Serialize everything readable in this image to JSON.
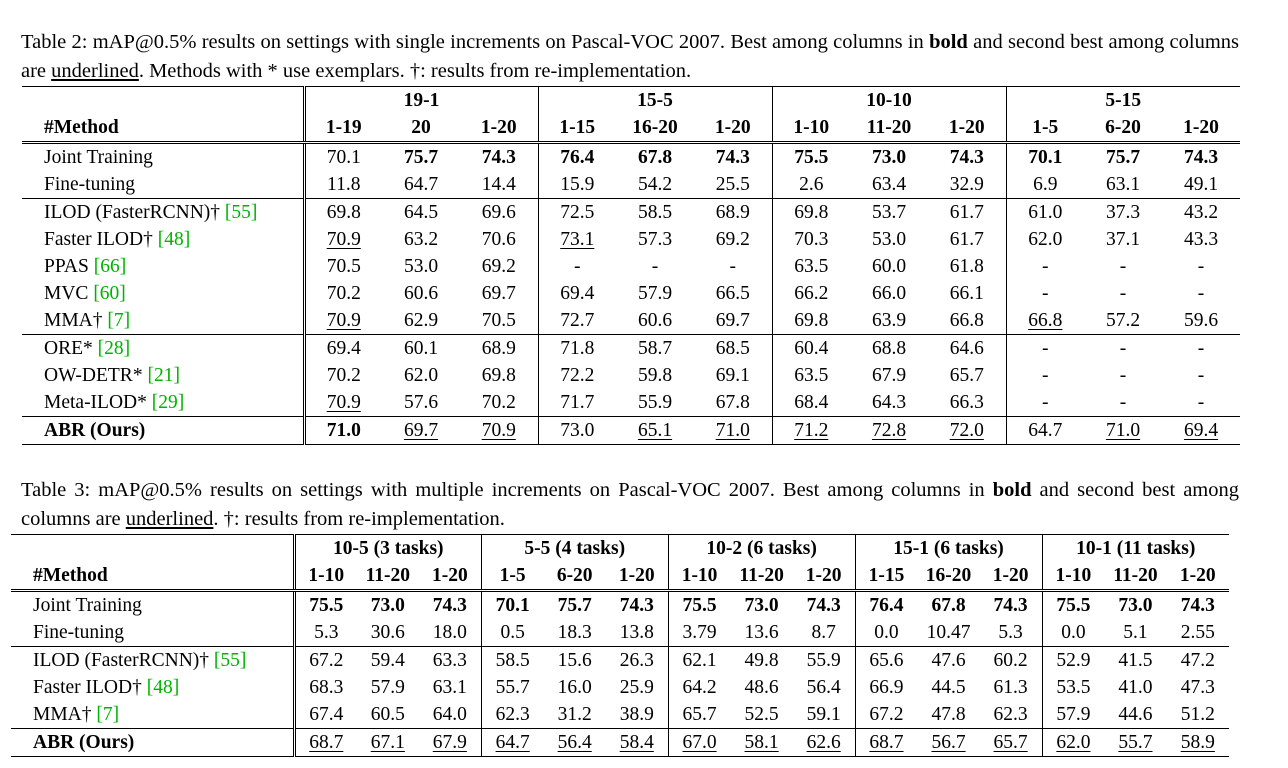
{
  "table2": {
    "caption": {
      "part1": "Table 2: mAP@0.5% results on settings with single increments on Pascal-VOC 2007. Best among columns in ",
      "bold": "bold",
      "part2": " and second best among columns are ",
      "underlined": "underlined",
      "part3": ". Methods with * use exemplars. †: results from re-implementation."
    },
    "method_header": "#Method",
    "groups": [
      "19-1",
      "15-5",
      "10-10",
      "5-15"
    ],
    "subheaders": [
      [
        "1-19",
        "20",
        "1-20"
      ],
      [
        "1-15",
        "16-20",
        "1-20"
      ],
      [
        "1-10",
        "11-20",
        "1-20"
      ],
      [
        "1-5",
        "6-20",
        "1-20"
      ]
    ],
    "rows": [
      {
        "name": "Joint Training",
        "cite": "",
        "values": [
          "70.1",
          "75.7",
          "74.3",
          "76.4",
          "67.8",
          "74.3",
          "75.5",
          "73.0",
          "74.3",
          "70.1",
          "75.7",
          "74.3"
        ]
      },
      {
        "name": "Fine-tuning",
        "cite": "",
        "values": [
          "11.8",
          "64.7",
          "14.4",
          "15.9",
          "54.2",
          "25.5",
          "2.6",
          "63.4",
          "32.9",
          "6.9",
          "63.1",
          "49.1"
        ]
      },
      {
        "name": "ILOD (FasterRCNN)† ",
        "cite": "[55]",
        "values": [
          "69.8",
          "64.5",
          "69.6",
          "72.5",
          "58.5",
          "68.9",
          "69.8",
          "53.7",
          "61.7",
          "61.0",
          "37.3",
          "43.2"
        ]
      },
      {
        "name": "Faster ILOD† ",
        "cite": "[48]",
        "values": [
          "70.9",
          "63.2",
          "70.6",
          "73.1",
          "57.3",
          "69.2",
          "70.3",
          "53.0",
          "61.7",
          "62.0",
          "37.1",
          "43.3"
        ]
      },
      {
        "name": "PPAS ",
        "cite": "[66]",
        "values": [
          "70.5",
          "53.0",
          "69.2",
          "-",
          "-",
          "-",
          "63.5",
          "60.0",
          "61.8",
          "-",
          "-",
          "-"
        ]
      },
      {
        "name": "MVC ",
        "cite": "[60]",
        "values": [
          "70.2",
          "60.6",
          "69.7",
          "69.4",
          "57.9",
          "66.5",
          "66.2",
          "66.0",
          "66.1",
          "-",
          "-",
          "-"
        ]
      },
      {
        "name": "MMA† ",
        "cite": "[7]",
        "values": [
          "70.9",
          "62.9",
          "70.5",
          "72.7",
          "60.6",
          "69.7",
          "69.8",
          "63.9",
          "66.8",
          "66.8",
          "57.2",
          "59.6"
        ]
      },
      {
        "name": "ORE* ",
        "cite": "[28]",
        "values": [
          "69.4",
          "60.1",
          "68.9",
          "71.8",
          "58.7",
          "68.5",
          "60.4",
          "68.8",
          "64.6",
          "-",
          "-",
          "-"
        ]
      },
      {
        "name": "OW-DETR* ",
        "cite": "[21]",
        "values": [
          "70.2",
          "62.0",
          "69.8",
          "72.2",
          "59.8",
          "69.1",
          "63.5",
          "67.9",
          "65.7",
          "-",
          "-",
          "-"
        ]
      },
      {
        "name": "Meta-ILOD* ",
        "cite": "[29]",
        "values": [
          "70.9",
          "57.6",
          "70.2",
          "71.7",
          "55.9",
          "67.8",
          "68.4",
          "64.3",
          "66.3",
          "-",
          "-",
          "-"
        ]
      },
      {
        "name": "ABR (Ours)",
        "cite": "",
        "values": [
          "71.0",
          "69.7",
          "70.9",
          "73.0",
          "65.1",
          "71.0",
          "71.2",
          "72.8",
          "72.0",
          "64.7",
          "71.0",
          "69.4"
        ]
      }
    ]
  },
  "table3": {
    "caption": {
      "part1": "Table 3: mAP@0.5% results on settings with multiple increments on Pascal-VOC 2007. Best among columns in ",
      "bold": "bold",
      "part2": " and second best among columns are ",
      "underlined": "underlined",
      "part3": ". †: results from re-implementation."
    },
    "method_header": "#Method",
    "groups": [
      "10-5 (3 tasks)",
      "5-5 (4 tasks)",
      "10-2 (6 tasks)",
      "15-1 (6 tasks)",
      "10-1 (11 tasks)"
    ],
    "subheaders": [
      [
        "1-10",
        "11-20",
        "1-20"
      ],
      [
        "1-5",
        "6-20",
        "1-20"
      ],
      [
        "1-10",
        "11-20",
        "1-20"
      ],
      [
        "1-15",
        "16-20",
        "1-20"
      ],
      [
        "1-10",
        "11-20",
        "1-20"
      ]
    ],
    "rows": [
      {
        "name": "Joint Training",
        "cite": "",
        "values": [
          "75.5",
          "73.0",
          "74.3",
          "70.1",
          "75.7",
          "74.3",
          "75.5",
          "73.0",
          "74.3",
          "76.4",
          "67.8",
          "74.3",
          "75.5",
          "73.0",
          "74.3"
        ]
      },
      {
        "name": "Fine-tuning",
        "cite": "",
        "values": [
          "5.3",
          "30.6",
          "18.0",
          "0.5",
          "18.3",
          "13.8",
          "3.79",
          "13.6",
          "8.7",
          "0.0",
          "10.47",
          "5.3",
          "0.0",
          "5.1",
          "2.55"
        ]
      },
      {
        "name": "ILOD (FasterRCNN)† ",
        "cite": "[55]",
        "values": [
          "67.2",
          "59.4",
          "63.3",
          "58.5",
          "15.6",
          "26.3",
          "62.1",
          "49.8",
          "55.9",
          "65.6",
          "47.6",
          "60.2",
          "52.9",
          "41.5",
          "47.2"
        ]
      },
      {
        "name": "Faster ILOD† ",
        "cite": "[48]",
        "values": [
          "68.3",
          "57.9",
          "63.1",
          "55.7",
          "16.0",
          "25.9",
          "64.2",
          "48.6",
          "56.4",
          "66.9",
          "44.5",
          "61.3",
          "53.5",
          "41.0",
          "47.3"
        ]
      },
      {
        "name": "MMA† ",
        "cite": "[7]",
        "values": [
          "67.4",
          "60.5",
          "64.0",
          "62.3",
          "31.2",
          "38.9",
          "65.7",
          "52.5",
          "59.1",
          "67.2",
          "47.8",
          "62.3",
          "57.9",
          "44.6",
          "51.2"
        ]
      },
      {
        "name": "ABR (Ours)",
        "cite": "",
        "values": [
          "68.7",
          "67.1",
          "67.9",
          "64.7",
          "56.4",
          "58.4",
          "67.0",
          "58.1",
          "62.6",
          "68.7",
          "56.7",
          "65.7",
          "62.0",
          "55.7",
          "58.9"
        ]
      }
    ]
  }
}
